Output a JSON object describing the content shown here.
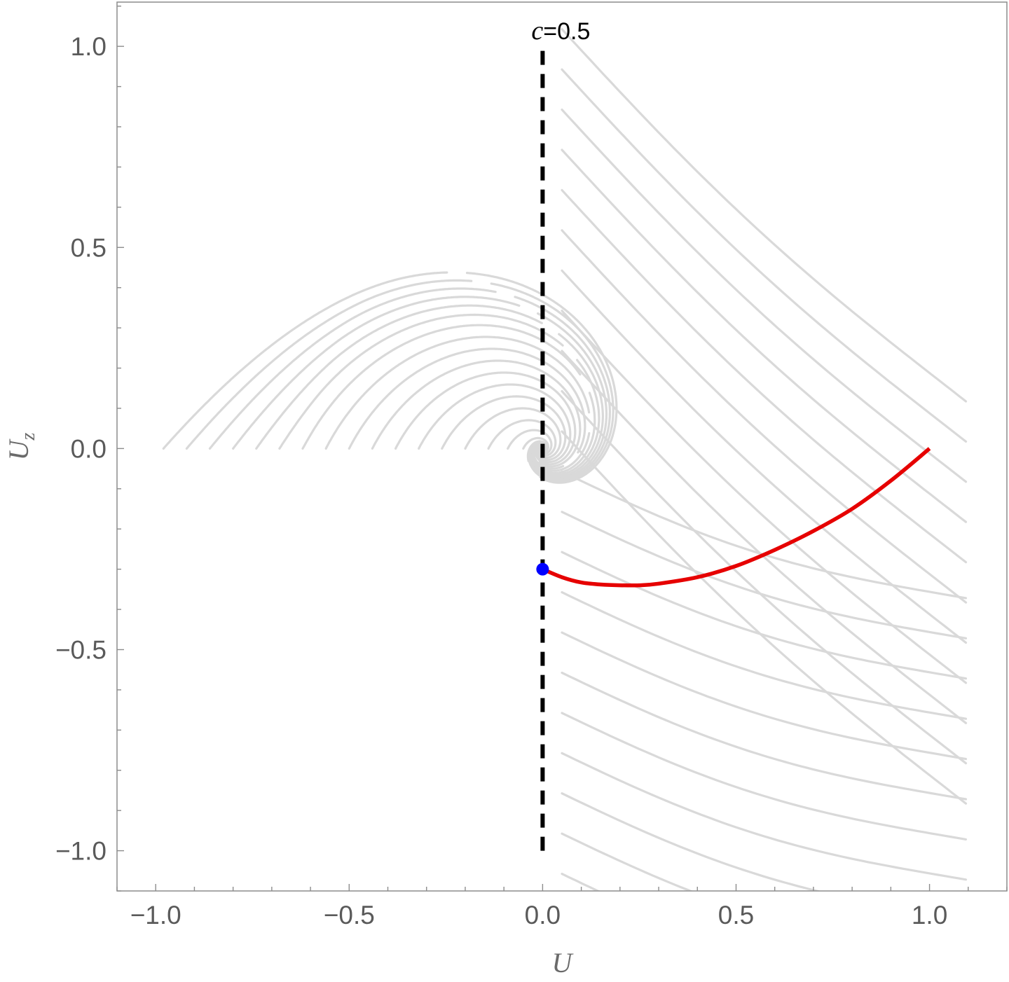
{
  "chart_data": {
    "type": "line",
    "title": "",
    "xlabel": "U",
    "ylabel": "U",
    "ylabel_subscript": "z",
    "xlim": [
      -1.1,
      1.2
    ],
    "ylim": [
      -1.1,
      1.11
    ],
    "x_major_ticks": [
      -1.0,
      -0.5,
      0.0,
      0.5,
      1.0
    ],
    "y_major_ticks": [
      -1.0,
      -0.5,
      0.0,
      0.5,
      1.0
    ],
    "x_tick_labels": [
      "−1.0",
      "−0.5",
      "0.0",
      "0.5",
      "1.0"
    ],
    "y_tick_labels": [
      "−1.0",
      "−0.5",
      "0.0",
      "0.5",
      "1.0"
    ],
    "grid": false,
    "annotation": {
      "variable": "c",
      "value_text": "=0.5",
      "x": 0.0,
      "y": 1.0
    },
    "background_stream_color": "#d9d9d9",
    "series": [
      {
        "role": "dashed-vertical-line",
        "color": "#000000",
        "x": [
          0.0,
          0.0
        ],
        "y": [
          -1.0,
          1.0
        ]
      },
      {
        "role": "trajectory",
        "color": "#e60000",
        "x": [
          0.0,
          0.05,
          0.1,
          0.15,
          0.2,
          0.25,
          0.3,
          0.4,
          0.5,
          0.6,
          0.7,
          0.8,
          0.9,
          1.0
        ],
        "y": [
          -0.3,
          -0.32,
          -0.333,
          -0.338,
          -0.34,
          -0.34,
          -0.336,
          -0.32,
          -0.292,
          -0.252,
          -0.205,
          -0.15,
          -0.08,
          0.0
        ]
      },
      {
        "role": "start-point",
        "color": "#0000ff",
        "x": [
          0.0
        ],
        "y": [
          -0.3
        ]
      }
    ]
  }
}
